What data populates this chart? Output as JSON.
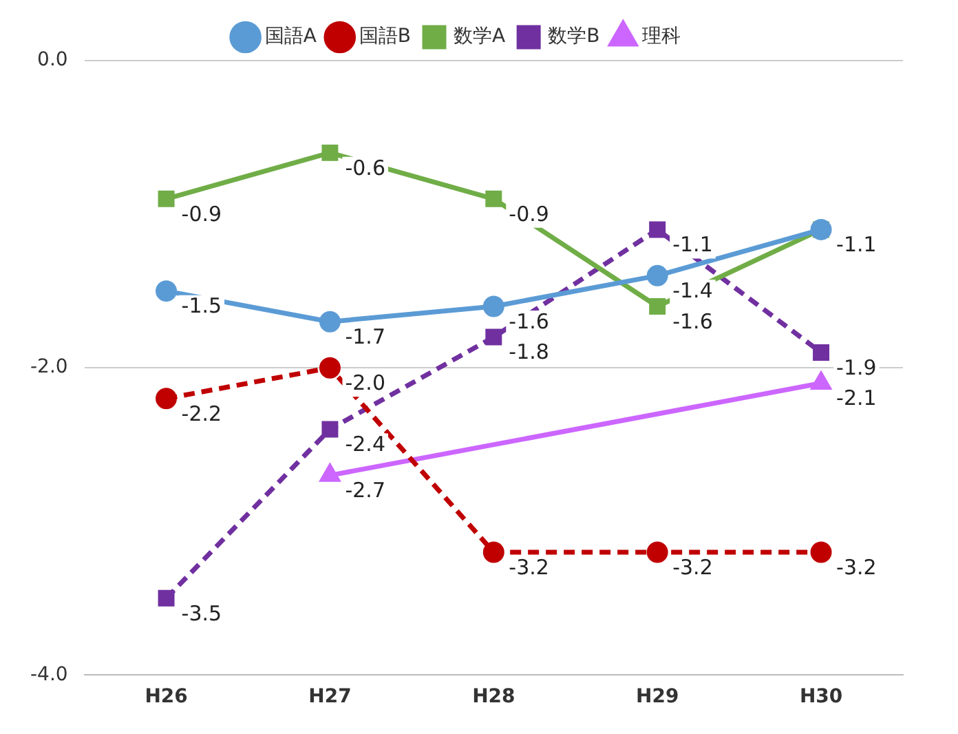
{
  "chart_data": {
    "type": "line",
    "categories": [
      "H26",
      "H27",
      "H28",
      "H29",
      "H30"
    ],
    "series": [
      {
        "name": "国語A",
        "color": "#5b9bd5",
        "marker": "circle",
        "line_style": "solid",
        "values": [
          -1.5,
          -1.7,
          -1.6,
          -1.4,
          -1.1
        ],
        "value_labels": [
          "-1.5",
          "-1.7",
          "-1.6",
          "-1.4",
          null
        ]
      },
      {
        "name": "国語B",
        "color": "#c00000",
        "marker": "circle",
        "line_style": "dashed",
        "values": [
          -2.2,
          -2.0,
          -3.2,
          -3.2,
          -3.2
        ],
        "value_labels": [
          "-2.2",
          "-2.0",
          "-3.2",
          "-3.2",
          "-3.2"
        ]
      },
      {
        "name": "数学A",
        "color": "#70ad47",
        "marker": "square",
        "line_style": "solid",
        "values": [
          -0.9,
          -0.6,
          -0.9,
          -1.6,
          -1.1
        ],
        "value_labels": [
          "-0.9",
          "-0.6",
          "-0.9",
          "-1.6",
          "-1.1"
        ]
      },
      {
        "name": "数学B",
        "color": "#7030a0",
        "marker": "square",
        "line_style": "dashed",
        "values": [
          -3.5,
          -2.4,
          -1.8,
          -1.1,
          -1.9
        ],
        "value_labels": [
          "-3.5",
          "-2.4",
          "-1.8",
          "-1.1",
          "-1.9"
        ]
      },
      {
        "name": "理科",
        "color": "#cc66ff",
        "marker": "triangle",
        "line_style": "solid",
        "values": [
          null,
          -2.7,
          null,
          null,
          -2.1
        ],
        "value_labels": [
          null,
          "-2.7",
          null,
          null,
          "-2.1"
        ]
      }
    ],
    "ylim": [
      -4,
      0
    ],
    "yticks": [
      {
        "value": -4,
        "label": "-4.0"
      },
      {
        "value": -2,
        "label": "-2.0"
      },
      {
        "value": 0,
        "label": "0.0"
      }
    ],
    "grid": "y",
    "legend": "top"
  }
}
